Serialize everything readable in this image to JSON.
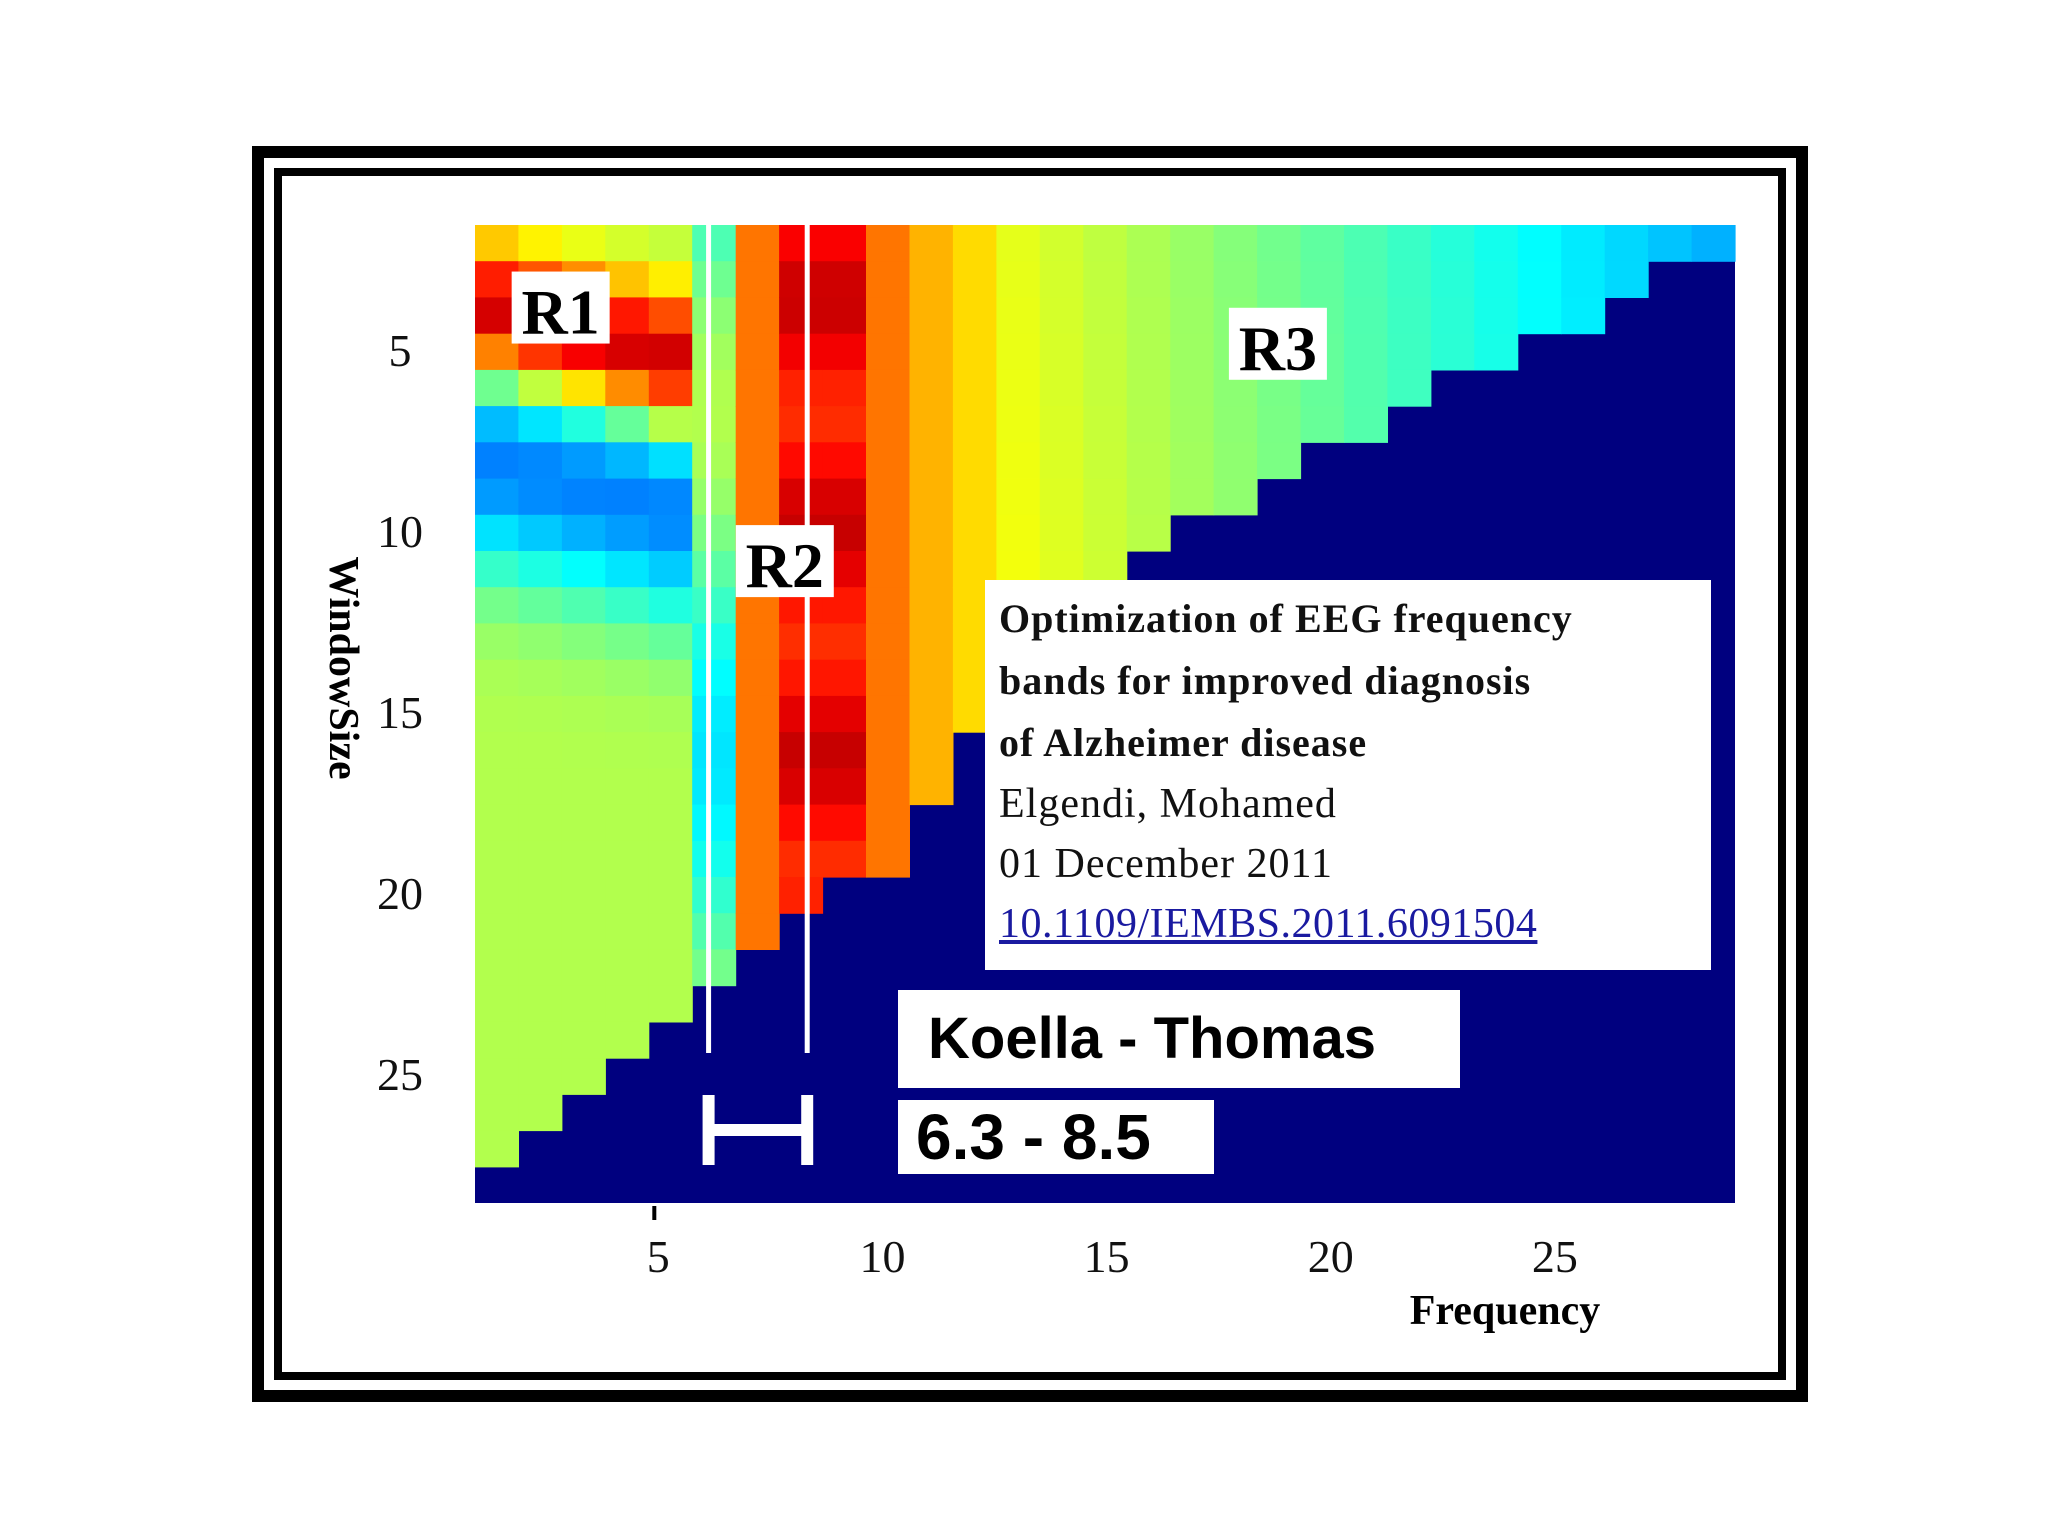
{
  "chart_data": {
    "type": "heatmap",
    "title": "",
    "xlabel": "Frequency",
    "ylabel": "WindowSize",
    "x_ticks": [
      5,
      10,
      15,
      20,
      25
    ],
    "y_ticks": [
      5,
      10,
      15,
      20,
      25
    ],
    "xlim": [
      0,
      29
    ],
    "ylim": [
      2,
      28
    ],
    "colormap": "jet",
    "background_color": "#00007f",
    "regions": [
      {
        "label": "R1",
        "x": 3,
        "y": 4
      },
      {
        "label": "R2",
        "x": 8,
        "y": 11
      },
      {
        "label": "R3",
        "x": 19,
        "y": 5
      }
    ],
    "highlight_band": {
      "label": "6.3 - 8.5",
      "from": 6.3,
      "to": 8.5
    },
    "band_source": "Koella - Thomas"
  },
  "citation": {
    "title_lines": [
      "Optimization of EEG frequency",
      "bands for improved diagnosis",
      "of Alzheimer disease"
    ],
    "author": "Elgendi, Mohamed",
    "date": "01 December 2011",
    "doi": "10.1109/IEMBS.2011.6091504"
  },
  "labels": {
    "band_source": "Koella - Thomas",
    "band_range": "6.3 - 8.5"
  }
}
